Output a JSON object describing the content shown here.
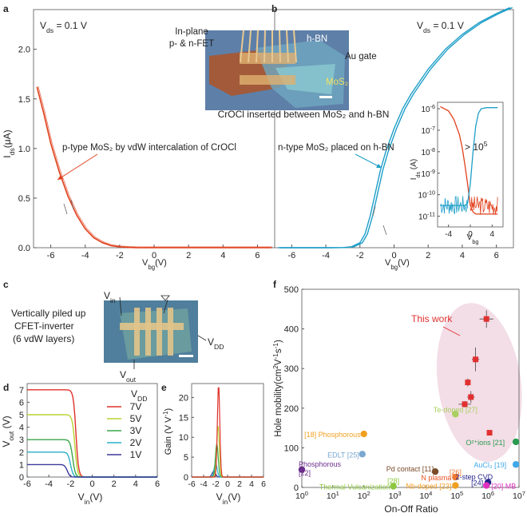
{
  "colors": {
    "p": "#e0401c",
    "n": "#1e9ec8",
    "axis": "#333333",
    "red": "#e03030",
    "ellipse": "#f3dde6"
  },
  "panels": {
    "a": "a",
    "b": "b",
    "c": "c",
    "d": "d",
    "e": "e",
    "f": "f"
  },
  "panel_a": {
    "vds": "V",
    "vds_sub": "ds",
    "vds_val": " = 0.1 V",
    "xlabel": "V",
    "xlabel_sub": "bg",
    "xlabel_unit": "(V)",
    "ylabel": "I",
    "ylabel_sub": "ds",
    "ylabel_unit": "(μA)",
    "annotation": "p-type MoS₂ by vdW intercalation of CrOCl"
  },
  "panel_b": {
    "vds": "V",
    "vds_sub": "ds",
    "vds_val": " = 0.1 V",
    "xlabel": "V",
    "xlabel_sub": "bg",
    "xlabel_unit": "(V)",
    "annotation": "n-type MoS₂ placed on h-BN"
  },
  "photo_ab": {
    "l1": "In-plane",
    "l2": "p- & n-FET",
    "hbn": "h-BN",
    "augate": "Au gate",
    "mos2": "MoS₂",
    "caption": "CrOCl inserted between MoS₂ and h-BN"
  },
  "inset_b": {
    "ylabel": "I",
    "ylabel_sub": "ds",
    "ylabel_unit": " (A)",
    "xlabel": "V",
    "xlabel_sub": "bg",
    "ratio": "> 10",
    "ratio_exp": "5",
    "yticks": [
      "10",
      "10",
      "10",
      "10",
      "10",
      "10"
    ],
    "yexps": [
      "-6",
      "-7",
      "-8",
      "-9",
      "-10",
      "-11"
    ],
    "xticks": [
      "-4",
      "0",
      "4"
    ]
  },
  "panel_c": {
    "vin": "V",
    "vin_sub": "in",
    "vdd": "V",
    "vdd_sub": "DD",
    "vout": "V",
    "vout_sub": "out",
    "t1": "Vertically piled up",
    "t2": "CFET-inverter",
    "t3": "(6 vdW layers)"
  },
  "panel_d": {
    "ylabel": "V",
    "ylabel_sub": "out",
    "ylabel_unit": " (V)",
    "xlabel": "V",
    "xlabel_sub": "in",
    "xlabel_unit": "(V)",
    "legend_title": "V",
    "legend_title_sub": "DD"
  },
  "panel_e": {
    "ylabel": "Gain (V V",
    "ylabel_sup": "-1",
    "ylabel_end": ")",
    "xlabel": "V",
    "xlabel_sub": "in",
    "xlabel_unit": "(V)"
  },
  "panel_f": {
    "ylabel": "Hole mobility(cm",
    "ylabel_sup1": "2",
    "ylabel_mid": "V",
    "ylabel_sup2": "-1",
    "ylabel_end": "s",
    "ylabel_sup3": "-1",
    "ylabel_close": ")",
    "xlabel": "On-Off Ratio",
    "this_work": "This work"
  },
  "chart_data": [
    {
      "id": "a",
      "type": "line",
      "xlim": [
        -7,
        7
      ],
      "ylim": [
        0,
        2.4
      ],
      "xticks": [
        -6,
        -4,
        -2,
        0,
        2,
        4,
        6
      ],
      "yticks": [
        0.0,
        0.5,
        1.0,
        1.5,
        2.0
      ],
      "ytick_labels": [
        "0.0",
        "0.5",
        "1.0",
        "1.5",
        "2.0"
      ],
      "series": [
        {
          "name": "p-type",
          "x": [
            -6.8,
            -6.4,
            -6,
            -5.5,
            -5,
            -4.5,
            -4,
            -3.5,
            -3,
            -2.5,
            -2,
            -1.5,
            -1,
            0,
            2,
            4,
            6.8
          ],
          "y": [
            1.62,
            1.35,
            1.05,
            0.76,
            0.52,
            0.33,
            0.19,
            0.1,
            0.05,
            0.02,
            0.008,
            0.003,
            0.001,
            0,
            0,
            0,
            0
          ]
        }
      ]
    },
    {
      "id": "b",
      "type": "line",
      "xlim": [
        -7,
        7
      ],
      "ylim": [
        0,
        2.4
      ],
      "xticks": [
        -6,
        -4,
        -2,
        0,
        2,
        4,
        6
      ],
      "yticks": [
        0.0,
        0.5,
        1.0,
        1.5,
        2.0
      ],
      "series": [
        {
          "name": "n-type",
          "x": [
            -6.8,
            -4,
            -3,
            -2.5,
            -2,
            -1.7,
            -1.4,
            -1.1,
            -0.8,
            -0.5,
            0,
            0.5,
            1,
            2,
            3,
            4,
            5,
            6,
            6.8
          ],
          "y": [
            0,
            0,
            0.002,
            0.01,
            0.05,
            0.14,
            0.32,
            0.55,
            0.78,
            0.96,
            1.2,
            1.4,
            1.55,
            1.8,
            2.0,
            2.15,
            2.27,
            2.36,
            2.42
          ]
        }
      ]
    },
    {
      "id": "b_inset",
      "type": "line",
      "yscale": "log",
      "xlim": [
        -6,
        6
      ],
      "ylim": [
        -11.5,
        -5.7
      ],
      "series": [
        {
          "name": "p-type",
          "x": [
            -5.5,
            -4,
            -3,
            -2,
            -1.5,
            -1,
            -0.5,
            0,
            0.5,
            1,
            2,
            3,
            4,
            5
          ],
          "log10y": [
            -5.9,
            -6.1,
            -6.5,
            -7.2,
            -7.8,
            -8.6,
            -9.5,
            -10.5,
            -10.8,
            -10.9,
            -10.9,
            -10.9,
            -10.9,
            -10.9
          ]
        },
        {
          "name": "n-type",
          "x": [
            -5.5,
            -4,
            -3,
            -2,
            -1,
            -0.5,
            0,
            0.5,
            1,
            1.5,
            2,
            3,
            4,
            5
          ],
          "log10y": [
            -10.5,
            -10.5,
            -10.5,
            -10.5,
            -10.5,
            -10.4,
            -9.5,
            -8.0,
            -6.8,
            -6.2,
            -6.0,
            -5.95,
            -5.95,
            -5.95
          ]
        }
      ]
    },
    {
      "id": "d",
      "type": "line",
      "xlim": [
        -6,
        6
      ],
      "ylim": [
        0,
        7.5
      ],
      "xticks": [
        -6,
        -4,
        -2,
        0,
        2,
        4,
        6
      ],
      "yticks": [
        0,
        1,
        2,
        3,
        4,
        5,
        6,
        7
      ],
      "series": [
        {
          "name": "7V",
          "vdd": 7,
          "color": "#e0302a"
        },
        {
          "name": "5V",
          "vdd": 5,
          "color": "#b8d433"
        },
        {
          "name": "3V",
          "vdd": 3,
          "color": "#3aa64a"
        },
        {
          "name": "2V",
          "vdd": 2,
          "color": "#2ab0c8"
        },
        {
          "name": "1V",
          "vdd": 1,
          "color": "#3d3a9a"
        }
      ],
      "switch_points": [
        -1.5,
        -1.6,
        -1.8,
        -2.0,
        -2.3
      ]
    },
    {
      "id": "e",
      "type": "line",
      "xlim": [
        -6,
        6
      ],
      "ylim": [
        0,
        23
      ],
      "xticks": [
        -6,
        -4,
        -2,
        0,
        2,
        4,
        6
      ],
      "yticks": [
        0,
        5,
        10,
        15,
        20
      ],
      "peaks": [
        {
          "name": "7V",
          "x": -1.5,
          "y": 23.5,
          "w": 0.28
        },
        {
          "name": "5V",
          "x": -1.6,
          "y": 13,
          "w": 0.3
        },
        {
          "name": "3V",
          "x": -1.8,
          "y": 8.5,
          "w": 0.32
        },
        {
          "name": "2V",
          "x": -2.0,
          "y": 3.5,
          "w": 0.35
        },
        {
          "name": "1V",
          "x": -2.3,
          "y": 1.5,
          "w": 0.4
        }
      ]
    },
    {
      "id": "f",
      "type": "scatter",
      "xscale": "log",
      "xlim": [
        0,
        7
      ],
      "ylim": [
        0,
        500
      ],
      "yticks": [
        0,
        100,
        200,
        300,
        400,
        500
      ],
      "xticks": [
        0,
        1,
        2,
        3,
        4,
        5,
        6,
        7
      ],
      "this_work": [
        {
          "x": 5.95,
          "y": 425,
          "xe": 0.22,
          "ye": 22
        },
        {
          "x": 5.6,
          "y": 323,
          "xe": 0.12,
          "ye": 30
        },
        {
          "x": 5.45,
          "y": 228,
          "xe": 0.12,
          "ye": 15
        },
        {
          "x": 5.35,
          "y": 265,
          "xe": 0.06,
          "ye": 10
        },
        {
          "x": 5.25,
          "y": 210,
          "xe": 0.2,
          "ye": 8
        },
        {
          "x": 6.05,
          "y": 138,
          "xe": 0,
          "ye": 0
        }
      ],
      "refs": [
        {
          "label": "Phosphorous\n[22]",
          "x": 0,
          "y": 45,
          "color": "#6a2e8c"
        },
        {
          "label": "[18] Phosphorous",
          "x": 2.0,
          "y": 135,
          "color": "#f0a020"
        },
        {
          "label": "EDLT [25]",
          "x": 1.95,
          "y": 84,
          "color": "#7aa8d0"
        },
        {
          "label": "Thermal Vulcanization",
          "x": 2.95,
          "y": 3,
          "color": "#8cc840"
        },
        {
          "label": "[28]",
          "x": 2.95,
          "y": 3,
          "color": "#8cc840"
        },
        {
          "label": "Pd contact [11]",
          "x": 4.3,
          "y": 40,
          "color": "#7a4a28"
        },
        {
          "label": "[26]",
          "x": 4.95,
          "y": 26,
          "color": "#f07830"
        },
        {
          "label": "N plasma",
          "x": 4.95,
          "y": 26,
          "color": "#e85020"
        },
        {
          "label": "Nb-doped [23]",
          "x": 4.95,
          "y": 5,
          "color": "#f0a020"
        },
        {
          "label": "Te-doped [27]",
          "x": 4.95,
          "y": 185,
          "color": "#a8d060"
        },
        {
          "label": "O²⁺ions [21]",
          "x": 6.9,
          "y": 115,
          "color": "#2a9a50"
        },
        {
          "label": "AuCl₃ [19]",
          "x": 6.9,
          "y": 58,
          "color": "#40a8e8"
        },
        {
          "label": "2-step CVD",
          "x": 6.0,
          "y": 13,
          "color": "#222288"
        },
        {
          "label": "[24]",
          "x": 6.0,
          "y": 13,
          "color": "#222288"
        },
        {
          "label": "[20] MB",
          "x": 5.95,
          "y": 5,
          "color": "#e030c0"
        }
      ]
    }
  ]
}
